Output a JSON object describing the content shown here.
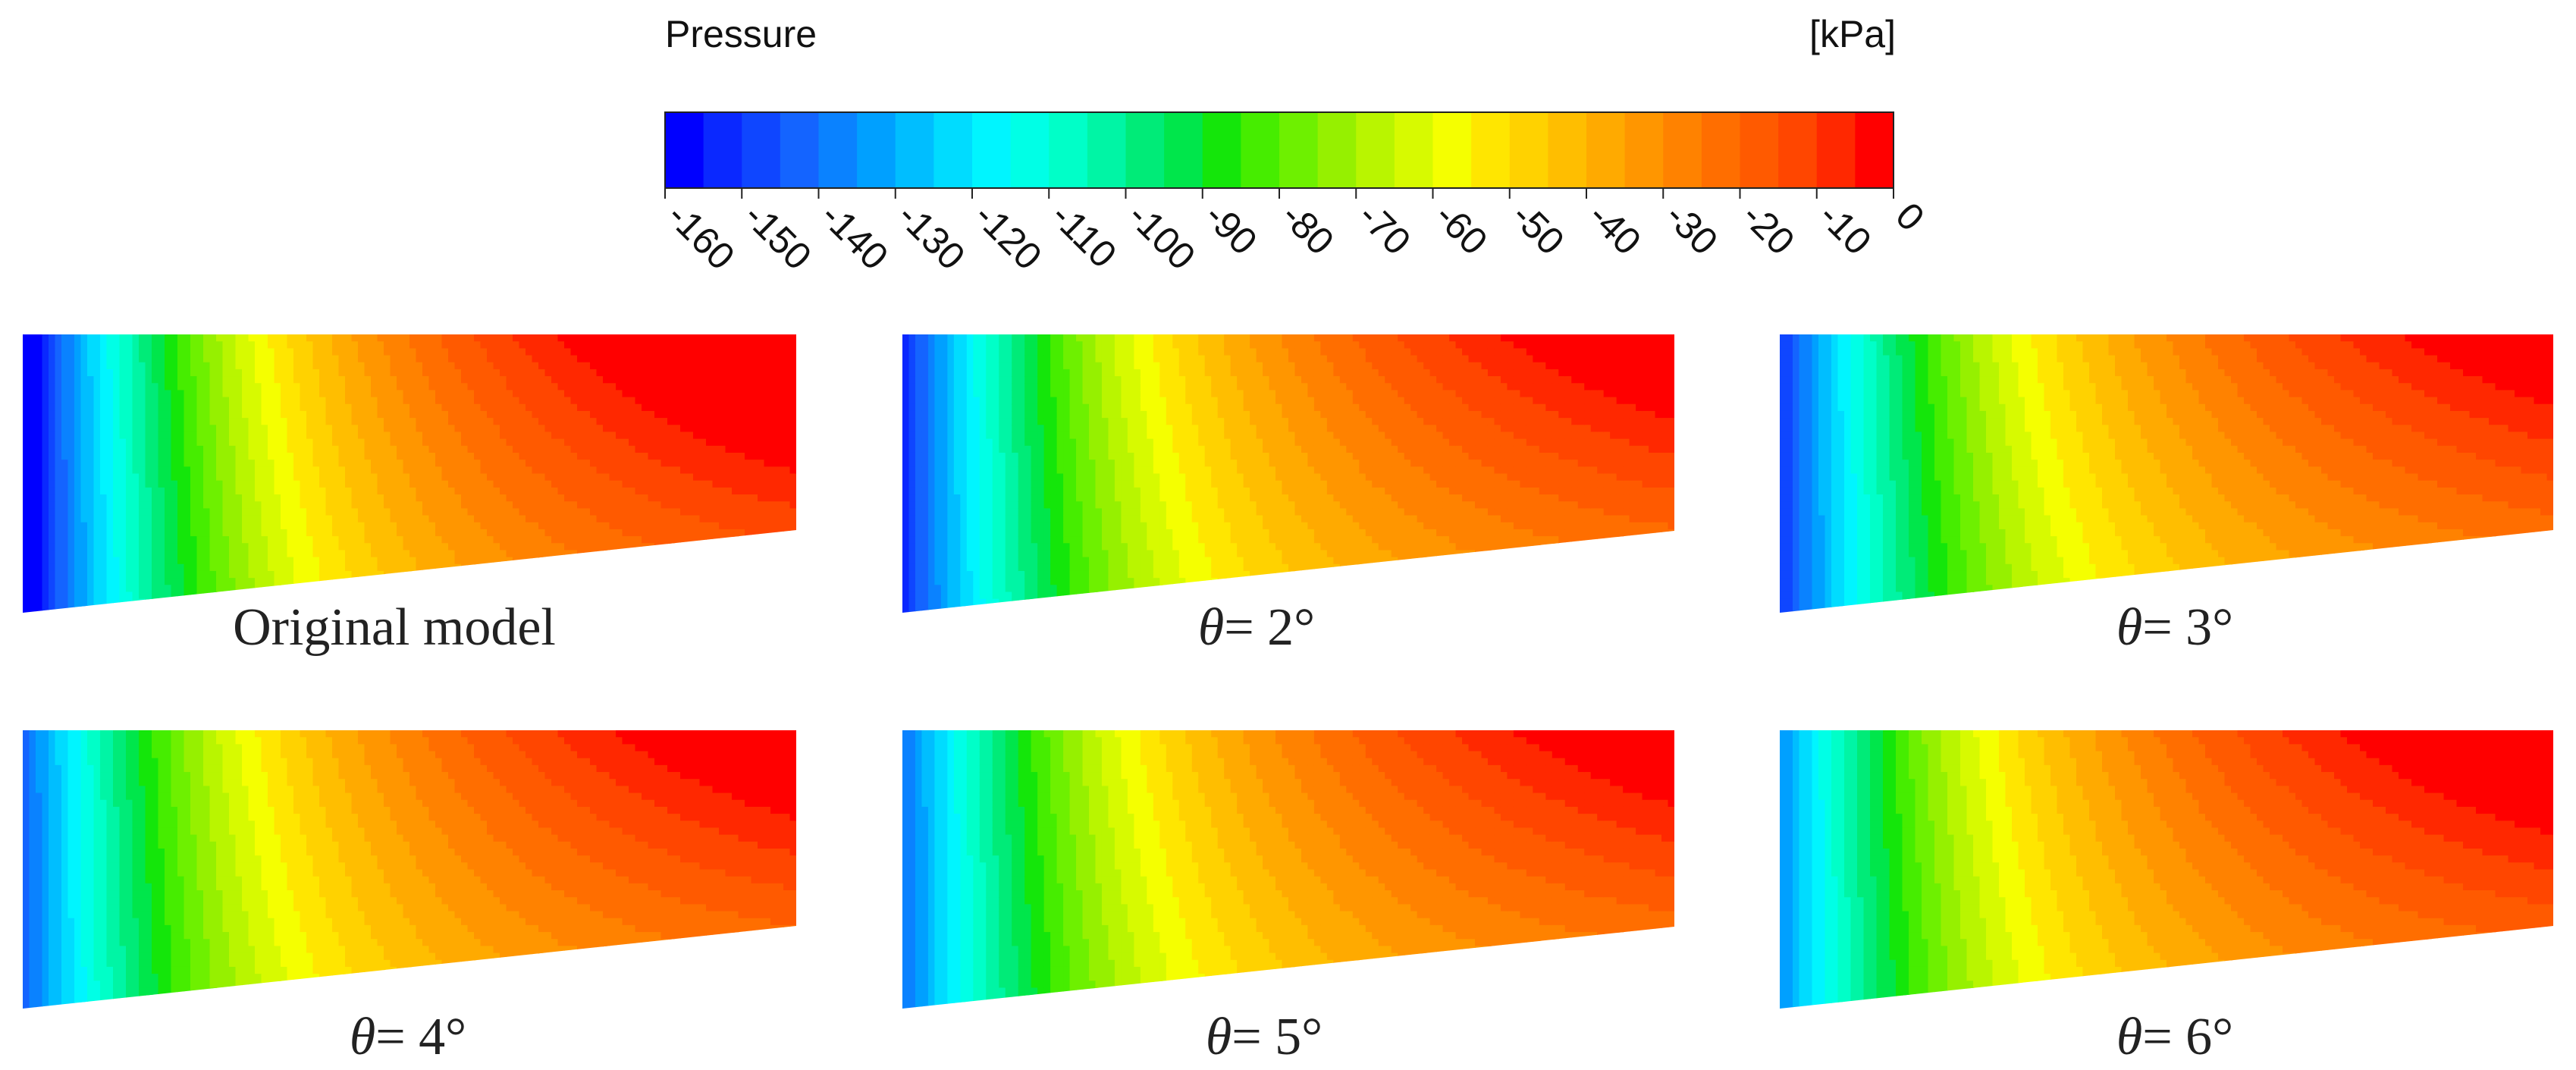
{
  "colorbar": {
    "title": "Pressure",
    "unit": "[kPa]",
    "min": -160,
    "max": 0,
    "levels": 32,
    "ticks": [
      -160,
      -150,
      -140,
      -130,
      -120,
      -110,
      -100,
      -90,
      -80,
      -70,
      -60,
      -50,
      -40,
      -30,
      -20,
      -10,
      0
    ],
    "colors": [
      "#0000ff",
      "#0a28ff",
      "#0f46ff",
      "#1464ff",
      "#0a82ff",
      "#00a0ff",
      "#00beff",
      "#00dcff",
      "#00f5ff",
      "#00ffe6",
      "#00ffc8",
      "#00f5a5",
      "#00eb78",
      "#00e64b",
      "#14e60a",
      "#46ed00",
      "#6ef000",
      "#96f000",
      "#b9f500",
      "#d7fa00",
      "#f5ff00",
      "#ffe600",
      "#ffd200",
      "#ffbe00",
      "#ffaa00",
      "#ff9600",
      "#ff8200",
      "#ff6e00",
      "#ff5a00",
      "#ff4600",
      "#ff2800",
      "#ff0000"
    ]
  },
  "panels": [
    {
      "id": "original",
      "caption_text": "Original model",
      "caption_symbol": "",
      "caption_value": ""
    },
    {
      "id": "theta2",
      "caption_text": "",
      "caption_symbol": "θ",
      "caption_value": "= 2°"
    },
    {
      "id": "theta3",
      "caption_text": "",
      "caption_symbol": "θ",
      "caption_value": "= 3°"
    },
    {
      "id": "theta4",
      "caption_text": "",
      "caption_symbol": "θ",
      "caption_value": "= 4°"
    },
    {
      "id": "theta5",
      "caption_text": "",
      "caption_symbol": "θ",
      "caption_value": "= 5°"
    },
    {
      "id": "theta6",
      "caption_text": "",
      "caption_symbol": "θ",
      "caption_value": "= 6°"
    }
  ]
}
